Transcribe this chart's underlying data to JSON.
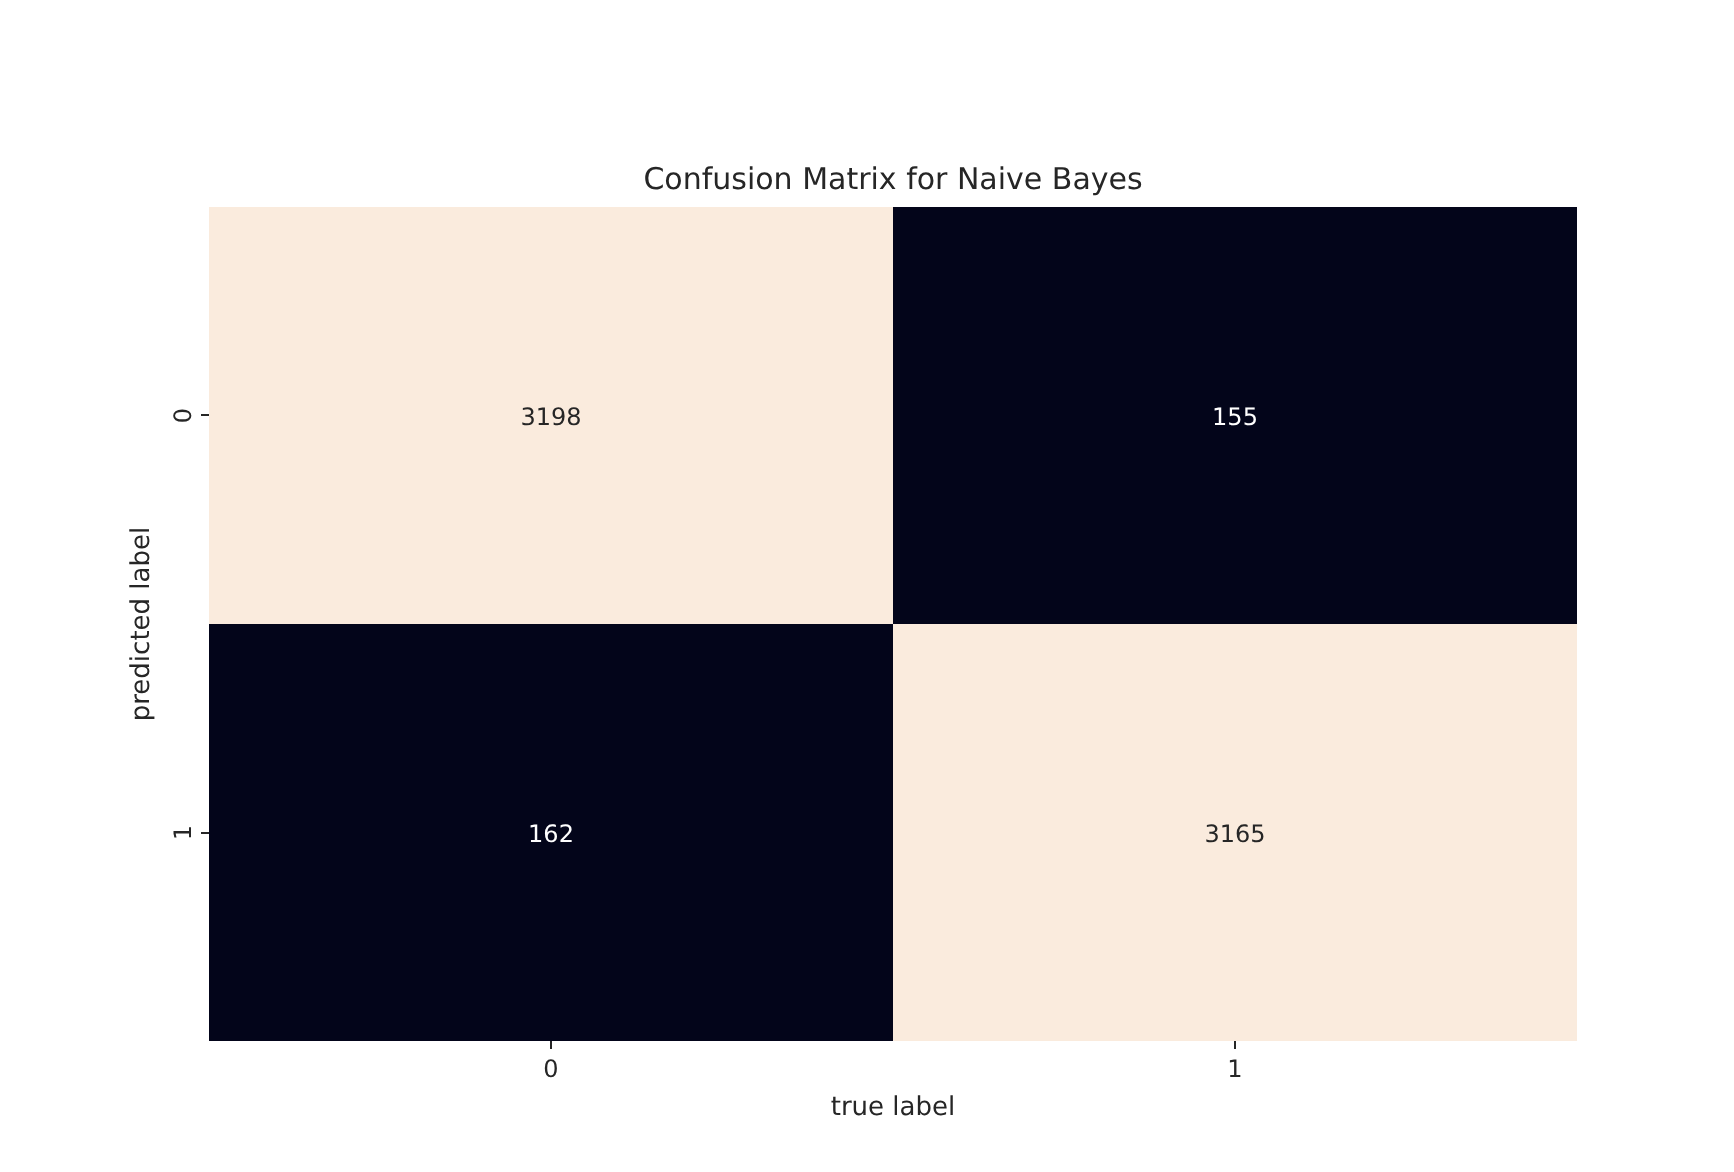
{
  "chart_data": {
    "type": "heatmap",
    "title": "Confusion Matrix for Naive Bayes",
    "xlabel": "true label",
    "ylabel": "predicted label",
    "categories": [
      "0",
      "1"
    ],
    "y_categories": [
      "0",
      "1"
    ],
    "cells": [
      [
        3198,
        155
      ],
      [
        162,
        3165
      ]
    ],
    "colors": [
      "#faebdd",
      "#03051a",
      "#03051a",
      "#faebdd"
    ],
    "data_labels": true
  }
}
